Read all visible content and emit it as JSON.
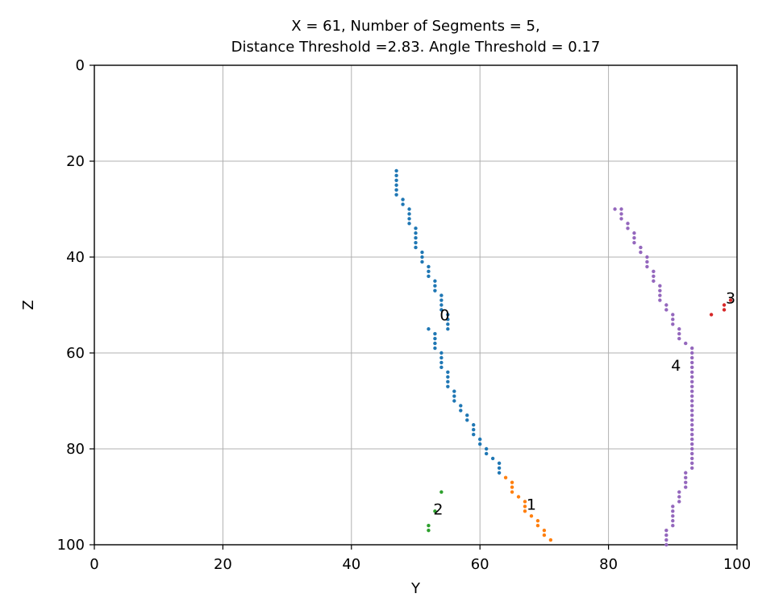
{
  "chart_data": {
    "type": "scatter",
    "title_lines": [
      "X = 61, Number of Segments = 5,",
      "Distance Threshold =2.83. Angle Threshold = 0.17"
    ],
    "xlabel": "Y",
    "ylabel": "Z",
    "xlim": [
      0,
      100
    ],
    "ylim": [
      0,
      100
    ],
    "y_inverted": true,
    "grid": true,
    "x_ticks": [
      0,
      20,
      40,
      60,
      80,
      100
    ],
    "y_ticks": [
      0,
      20,
      40,
      60,
      80,
      100
    ],
    "x_tick_labels": [
      "0",
      "20",
      "40",
      "60",
      "80",
      "100"
    ],
    "y_tick_labels": [
      "0",
      "20",
      "40",
      "60",
      "80",
      "100"
    ],
    "series": [
      {
        "label": "0",
        "color": "#1f77b4",
        "label_pos": [
          54.5,
          52
        ],
        "points": [
          [
            47,
            22
          ],
          [
            47,
            23
          ],
          [
            47,
            24
          ],
          [
            47,
            25
          ],
          [
            47,
            26
          ],
          [
            47,
            27
          ],
          [
            48,
            28
          ],
          [
            48,
            29
          ],
          [
            49,
            30
          ],
          [
            49,
            31
          ],
          [
            49,
            32
          ],
          [
            49,
            33
          ],
          [
            50,
            34
          ],
          [
            50,
            35
          ],
          [
            50,
            36
          ],
          [
            50,
            37
          ],
          [
            50,
            38
          ],
          [
            51,
            39
          ],
          [
            51,
            40
          ],
          [
            51,
            41
          ],
          [
            52,
            42
          ],
          [
            52,
            43
          ],
          [
            52,
            44
          ],
          [
            53,
            45
          ],
          [
            53,
            46
          ],
          [
            53,
            47
          ],
          [
            54,
            48
          ],
          [
            54,
            49
          ],
          [
            54,
            50
          ],
          [
            54,
            51
          ],
          [
            55,
            52
          ],
          [
            55,
            53
          ],
          [
            55,
            54
          ],
          [
            55,
            55
          ],
          [
            52,
            55
          ],
          [
            53,
            56
          ],
          [
            53,
            57
          ],
          [
            53,
            58
          ],
          [
            53,
            59
          ],
          [
            54,
            60
          ],
          [
            54,
            61
          ],
          [
            54,
            62
          ],
          [
            54,
            63
          ],
          [
            55,
            64
          ],
          [
            55,
            65
          ],
          [
            55,
            66
          ],
          [
            55,
            67
          ],
          [
            56,
            68
          ],
          [
            56,
            69
          ],
          [
            56,
            70
          ],
          [
            57,
            71
          ],
          [
            57,
            72
          ],
          [
            58,
            73
          ],
          [
            58,
            74
          ],
          [
            59,
            75
          ],
          [
            59,
            76
          ],
          [
            59,
            77
          ],
          [
            60,
            78
          ],
          [
            60,
            79
          ],
          [
            61,
            80
          ],
          [
            61,
            81
          ],
          [
            62,
            82
          ],
          [
            63,
            83
          ],
          [
            63,
            84
          ],
          [
            63,
            85
          ]
        ]
      },
      {
        "label": "1",
        "color": "#ff7f0e",
        "label_pos": [
          68,
          91.5
        ],
        "points": [
          [
            64,
            86
          ],
          [
            65,
            87
          ],
          [
            65,
            88
          ],
          [
            65,
            89
          ],
          [
            66,
            90
          ],
          [
            67,
            91
          ],
          [
            67,
            92
          ],
          [
            67,
            93
          ],
          [
            68,
            94
          ],
          [
            69,
            95
          ],
          [
            69,
            96
          ],
          [
            70,
            97
          ],
          [
            70,
            98
          ],
          [
            71,
            99
          ]
        ]
      },
      {
        "label": "2",
        "color": "#2ca02c",
        "label_pos": [
          53.5,
          92.5
        ],
        "points": [
          [
            54,
            89
          ],
          [
            53,
            93
          ],
          [
            52,
            96
          ],
          [
            52,
            97
          ]
        ]
      },
      {
        "label": "3",
        "color": "#d62728",
        "label_pos": [
          99,
          48.5
        ],
        "points": [
          [
            96,
            52
          ],
          [
            98,
            51
          ],
          [
            98,
            50
          ],
          [
            99,
            49
          ]
        ]
      },
      {
        "label": "4",
        "color": "#9467bd",
        "label_pos": [
          90.5,
          62.5
        ],
        "points": [
          [
            81,
            30
          ],
          [
            82,
            30
          ],
          [
            82,
            31
          ],
          [
            82,
            32
          ],
          [
            83,
            33
          ],
          [
            83,
            34
          ],
          [
            84,
            35
          ],
          [
            84,
            36
          ],
          [
            84,
            37
          ],
          [
            85,
            38
          ],
          [
            85,
            39
          ],
          [
            86,
            40
          ],
          [
            86,
            41
          ],
          [
            86,
            42
          ],
          [
            87,
            43
          ],
          [
            87,
            44
          ],
          [
            87,
            45
          ],
          [
            88,
            46
          ],
          [
            88,
            47
          ],
          [
            88,
            48
          ],
          [
            88,
            49
          ],
          [
            89,
            50
          ],
          [
            89,
            51
          ],
          [
            90,
            52
          ],
          [
            90,
            53
          ],
          [
            90,
            54
          ],
          [
            91,
            55
          ],
          [
            91,
            56
          ],
          [
            91,
            57
          ],
          [
            92,
            58
          ],
          [
            93,
            59
          ],
          [
            93,
            60
          ],
          [
            93,
            61
          ],
          [
            93,
            62
          ],
          [
            93,
            63
          ],
          [
            93,
            64
          ],
          [
            93,
            65
          ],
          [
            93,
            66
          ],
          [
            93,
            67
          ],
          [
            93,
            68
          ],
          [
            93,
            69
          ],
          [
            93,
            70
          ],
          [
            93,
            71
          ],
          [
            93,
            72
          ],
          [
            93,
            73
          ],
          [
            93,
            74
          ],
          [
            93,
            75
          ],
          [
            93,
            76
          ],
          [
            93,
            77
          ],
          [
            93,
            78
          ],
          [
            93,
            79
          ],
          [
            93,
            80
          ],
          [
            93,
            81
          ],
          [
            93,
            82
          ],
          [
            93,
            83
          ],
          [
            93,
            84
          ],
          [
            92,
            85
          ],
          [
            92,
            86
          ],
          [
            92,
            87
          ],
          [
            92,
            88
          ],
          [
            91,
            89
          ],
          [
            91,
            90
          ],
          [
            91,
            91
          ],
          [
            90,
            92
          ],
          [
            90,
            93
          ],
          [
            90,
            94
          ],
          [
            90,
            95
          ],
          [
            90,
            96
          ],
          [
            89,
            97
          ],
          [
            89,
            98
          ],
          [
            89,
            99
          ],
          [
            89,
            100
          ]
        ]
      }
    ]
  }
}
